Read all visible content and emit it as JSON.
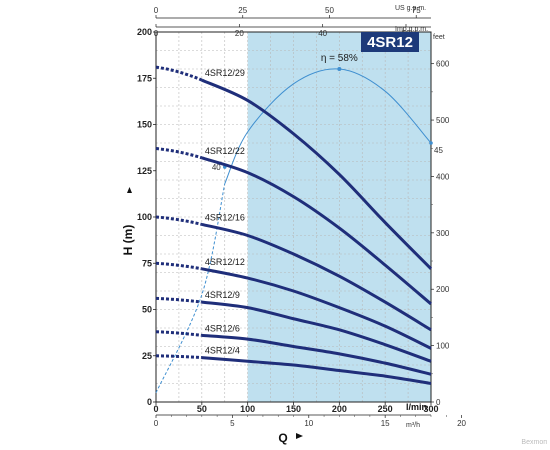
{
  "colors": {
    "curve": "#1f2e7a",
    "efficiency": "#3f8fd0",
    "shade": "#bfe0ef",
    "grid": "#b8b8b8",
    "badge": "#1d3a7a"
  },
  "chart_data": {
    "type": "line",
    "title": "4SR12",
    "xlabel": "Q",
    "ylabel": "H (m)",
    "xunit": "l/min",
    "xlim": [
      0,
      300
    ],
    "ylim": [
      0,
      200
    ],
    "x_ticks": [
      0,
      50,
      100,
      150,
      200,
      250,
      300
    ],
    "y_ticks": [
      0,
      25,
      50,
      75,
      100,
      125,
      150,
      175,
      200
    ],
    "top_axes": [
      {
        "unit": "US g.p.m.",
        "ticks": [
          0,
          25,
          50,
          75
        ],
        "factor": 0.2642
      },
      {
        "unit": "Imp g.p.m.",
        "ticks": [
          0,
          20,
          40,
          60
        ],
        "factor": 0.22
      }
    ],
    "bottom_axis_2": {
      "unit": "m³/h",
      "ticks": [
        0,
        5,
        10,
        15,
        20
      ],
      "factor": 0.06
    },
    "right_axis": {
      "unit": "feet",
      "ticks": [
        0,
        100,
        200,
        300,
        400,
        500,
        600
      ],
      "factor": 3.2808
    },
    "recommended_range": [
      100,
      300
    ],
    "grid": true,
    "series": [
      {
        "name": "4SR12/29",
        "shutoff": 181,
        "points": [
          [
            50,
            174
          ],
          [
            100,
            163
          ],
          [
            150,
            145
          ],
          [
            200,
            123
          ],
          [
            250,
            97
          ],
          [
            300,
            72
          ]
        ]
      },
      {
        "name": "4SR12/22",
        "shutoff": 137,
        "points": [
          [
            50,
            132
          ],
          [
            100,
            124
          ],
          [
            150,
            111
          ],
          [
            200,
            94
          ],
          [
            250,
            74
          ],
          [
            300,
            53
          ]
        ]
      },
      {
        "name": "4SR12/16",
        "shutoff": 100,
        "points": [
          [
            50,
            96
          ],
          [
            100,
            90
          ],
          [
            150,
            80
          ],
          [
            200,
            68
          ],
          [
            250,
            54
          ],
          [
            300,
            39
          ]
        ]
      },
      {
        "name": "4SR12/12",
        "shutoff": 75,
        "points": [
          [
            50,
            72
          ],
          [
            100,
            67
          ],
          [
            150,
            60
          ],
          [
            200,
            51
          ],
          [
            250,
            41
          ],
          [
            300,
            29
          ]
        ]
      },
      {
        "name": "4SR12/9",
        "shutoff": 56,
        "points": [
          [
            50,
            54
          ],
          [
            100,
            51
          ],
          [
            150,
            45
          ],
          [
            200,
            39
          ],
          [
            250,
            31
          ],
          [
            300,
            22
          ]
        ]
      },
      {
        "name": "4SR12/6",
        "shutoff": 38,
        "points": [
          [
            50,
            36
          ],
          [
            100,
            34
          ],
          [
            150,
            30
          ],
          [
            200,
            26
          ],
          [
            250,
            21
          ],
          [
            300,
            15
          ]
        ]
      },
      {
        "name": "4SR12/4",
        "shutoff": 25,
        "points": [
          [
            50,
            24
          ],
          [
            100,
            22
          ],
          [
            150,
            20
          ],
          [
            200,
            17
          ],
          [
            250,
            14
          ],
          [
            300,
            10
          ]
        ]
      }
    ],
    "efficiency_curve": {
      "label": "η = 58%",
      "points": [
        [
          0,
          5
        ],
        [
          50,
          58
        ],
        [
          75,
          118
        ],
        [
          100,
          146
        ],
        [
          150,
          172
        ],
        [
          200,
          180
        ],
        [
          250,
          168
        ],
        [
          300,
          140
        ]
      ],
      "markers": [
        {
          "label": "40",
          "x": 75,
          "y": 127
        },
        {
          "label": "45",
          "x": 300,
          "y": 140
        }
      ],
      "peak": [
        200,
        180
      ]
    }
  },
  "watermark": "Bexmoп"
}
